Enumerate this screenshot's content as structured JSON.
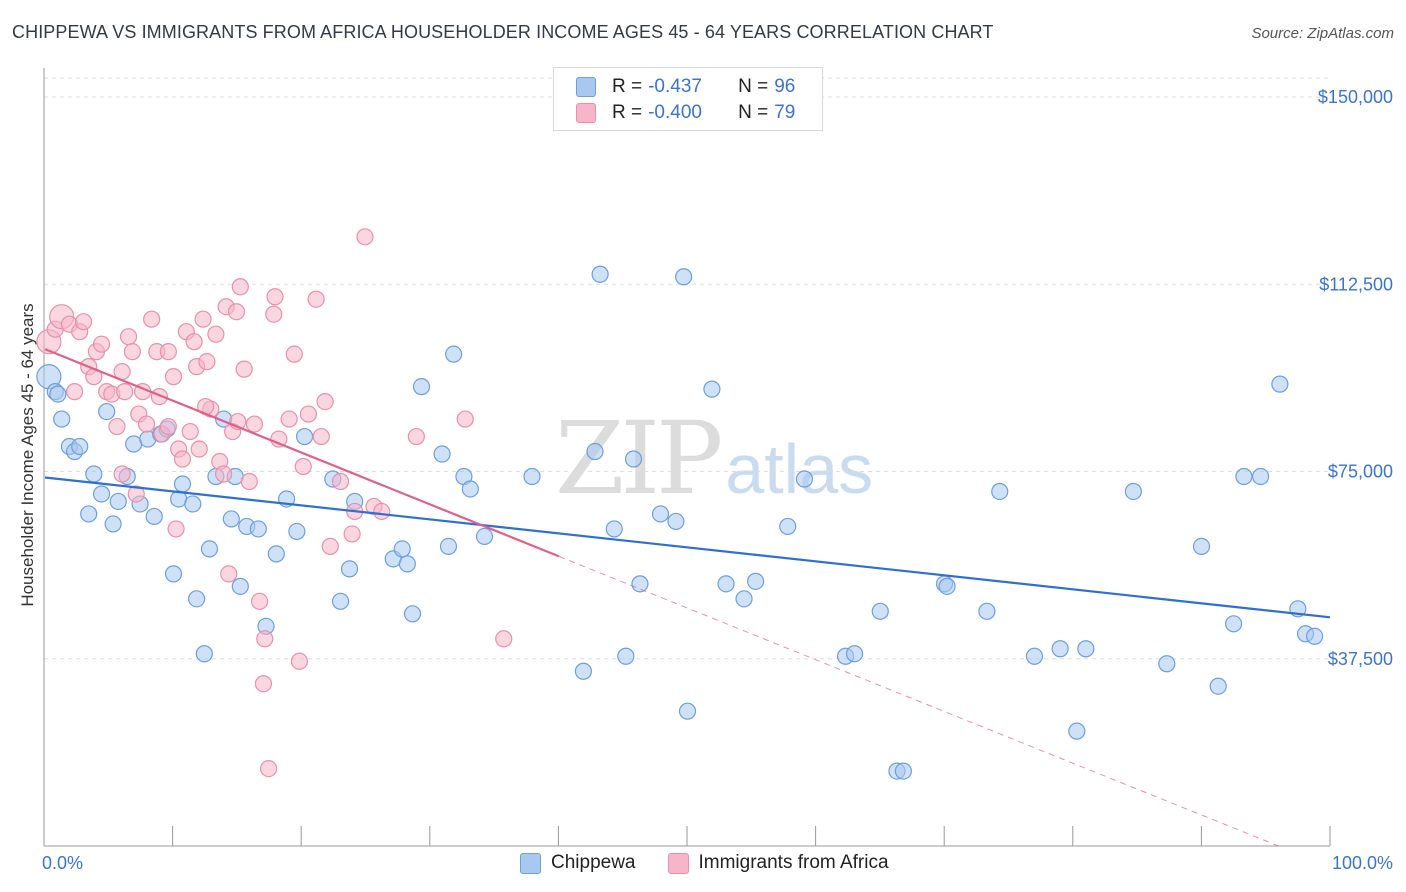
{
  "title": "CHIPPEWA VS IMMIGRANTS FROM AFRICA HOUSEHOLDER INCOME AGES 45 - 64 YEARS CORRELATION CHART",
  "source": "Source: ZipAtlas.com",
  "watermark": {
    "zip": "ZIP",
    "atlas": "atlas"
  },
  "legend": {
    "r_label": "R =",
    "n_label": "N =",
    "rows": [
      {
        "r": "-0.437",
        "n": "96",
        "color": "#a8c8f0"
      },
      {
        "r": "-0.400",
        "n": "79",
        "color": "#f6b5c8"
      }
    ]
  },
  "bottom_legend": [
    "Chippewa",
    "Immigrants from Africa"
  ],
  "colors": {
    "blue_fill": "#a8c8f0",
    "blue_stroke": "#6c9fdc",
    "blue_line": "#2e6fd0",
    "pink_fill": "#f6b5c8",
    "pink_stroke": "#e890aa",
    "pink_line": "#e0608a",
    "grid": "#dddddd",
    "tick_text": "#3a74d0"
  },
  "chart_data": {
    "type": "scatter",
    "title": "CHIPPEWA VS IMMIGRANTS FROM AFRICA HOUSEHOLDER INCOME AGES 45 - 64 YEARS CORRELATION CHART",
    "xlabel": "",
    "ylabel": "Householder Income Ages 45 - 64 years",
    "xlim": [
      0,
      100
    ],
    "ylim": [
      0,
      153000
    ],
    "x_tick_labels": [
      "0.0%",
      "100.0%"
    ],
    "y_ticks": [
      37500,
      75000,
      112500,
      150000
    ],
    "y_tick_labels": [
      "$37,500",
      "$75,000",
      "$112,500",
      "$150,000"
    ],
    "grid": true,
    "series": [
      {
        "name": "Chippewa",
        "r": -0.437,
        "n": 96,
        "trend": {
          "x": [
            0,
            100
          ],
          "y": [
            73800,
            45800
          ]
        },
        "points": [
          [
            0.3,
            94000
          ],
          [
            0.8,
            91000
          ],
          [
            1.3,
            85500
          ],
          [
            1.9,
            80000
          ],
          [
            2.3,
            79000
          ],
          [
            2.7,
            80000
          ],
          [
            3.4,
            66500
          ],
          [
            3.8,
            74500
          ],
          [
            4.4,
            70500
          ],
          [
            4.8,
            87000
          ],
          [
            5.3,
            64500
          ],
          [
            5.7,
            69000
          ],
          [
            6.4,
            74000
          ],
          [
            6.9,
            80500
          ],
          [
            7.4,
            68500
          ],
          [
            8.0,
            81500
          ],
          [
            8.5,
            66000
          ],
          [
            9.0,
            82500
          ],
          [
            9.5,
            83500
          ],
          [
            10.0,
            54500
          ],
          [
            10.4,
            69500
          ],
          [
            10.7,
            72500
          ],
          [
            11.5,
            68500
          ],
          [
            11.8,
            49500
          ],
          [
            12.4,
            38500
          ],
          [
            12.8,
            59500
          ],
          [
            13.3,
            74000
          ],
          [
            13.9,
            85500
          ],
          [
            14.5,
            65500
          ],
          [
            14.8,
            74000
          ],
          [
            15.2,
            52000
          ],
          [
            15.7,
            64000
          ],
          [
            16.6,
            63500
          ],
          [
            17.2,
            44000
          ],
          [
            18.0,
            58500
          ],
          [
            18.8,
            69500
          ],
          [
            19.6,
            63000
          ],
          [
            20.2,
            82000
          ],
          [
            22.4,
            73500
          ],
          [
            23.0,
            49000
          ],
          [
            23.7,
            55500
          ],
          [
            24.1,
            69000
          ],
          [
            27.1,
            57500
          ],
          [
            27.8,
            59500
          ],
          [
            28.2,
            56500
          ],
          [
            28.6,
            46500
          ],
          [
            29.3,
            92000
          ],
          [
            30.9,
            78500
          ],
          [
            31.4,
            60000
          ],
          [
            31.8,
            98500
          ],
          [
            32.6,
            74000
          ],
          [
            33.1,
            71500
          ],
          [
            34.2,
            62000
          ],
          [
            37.9,
            74000
          ],
          [
            41.9,
            35000
          ],
          [
            42.8,
            79000
          ],
          [
            43.2,
            114500
          ],
          [
            44.3,
            63500
          ],
          [
            45.2,
            38000
          ],
          [
            45.8,
            77500
          ],
          [
            46.3,
            52500
          ],
          [
            47.9,
            66500
          ],
          [
            49.1,
            65000
          ],
          [
            49.7,
            114000
          ],
          [
            50.0,
            27000
          ],
          [
            51.9,
            91500
          ],
          [
            53.0,
            52500
          ],
          [
            54.4,
            49500
          ],
          [
            55.3,
            53000
          ],
          [
            57.8,
            64000
          ],
          [
            59.1,
            73500
          ],
          [
            62.3,
            38000
          ],
          [
            63.0,
            38500
          ],
          [
            65.0,
            47000
          ],
          [
            66.3,
            15000
          ],
          [
            66.8,
            15000
          ],
          [
            70.0,
            52500
          ],
          [
            70.2,
            52000
          ],
          [
            73.3,
            47000
          ],
          [
            74.3,
            71000
          ],
          [
            77.0,
            38000
          ],
          [
            79.0,
            39500
          ],
          [
            80.3,
            23000
          ],
          [
            81.0,
            39500
          ],
          [
            84.7,
            71000
          ],
          [
            87.3,
            36500
          ],
          [
            90.0,
            60000
          ],
          [
            91.3,
            32000
          ],
          [
            92.5,
            44500
          ],
          [
            93.3,
            74000
          ],
          [
            94.6,
            74000
          ],
          [
            96.1,
            92500
          ],
          [
            97.5,
            47500
          ],
          [
            98.1,
            42500
          ],
          [
            98.8,
            42000
          ],
          [
            1.0,
            90500
          ]
        ]
      },
      {
        "name": "Immigrants from Africa",
        "r": -0.4,
        "n": 79,
        "trend": {
          "x": [
            0,
            40
          ],
          "y": [
            99500,
            58000
          ]
        },
        "trend_dashed": {
          "x": [
            40,
            96
          ],
          "y": [
            58000,
            0
          ]
        },
        "points": [
          [
            0.3,
            101000
          ],
          [
            0.8,
            103500
          ],
          [
            1.3,
            106000
          ],
          [
            1.9,
            104500
          ],
          [
            2.3,
            91000
          ],
          [
            2.7,
            103000
          ],
          [
            3.4,
            96000
          ],
          [
            3.8,
            94000
          ],
          [
            4.0,
            99000
          ],
          [
            4.4,
            100500
          ],
          [
            4.8,
            91000
          ],
          [
            5.2,
            90500
          ],
          [
            5.6,
            84000
          ],
          [
            6.0,
            74500
          ],
          [
            6.2,
            91000
          ],
          [
            6.5,
            102000
          ],
          [
            6.8,
            99000
          ],
          [
            7.1,
            70500
          ],
          [
            7.3,
            86500
          ],
          [
            7.6,
            91000
          ],
          [
            7.9,
            84500
          ],
          [
            8.3,
            105500
          ],
          [
            8.7,
            99000
          ],
          [
            8.9,
            90000
          ],
          [
            9.1,
            82500
          ],
          [
            9.6,
            99000
          ],
          [
            10.0,
            94000
          ],
          [
            10.2,
            63500
          ],
          [
            10.4,
            79500
          ],
          [
            10.7,
            77500
          ],
          [
            11.0,
            103000
          ],
          [
            11.3,
            83000
          ],
          [
            11.6,
            101000
          ],
          [
            11.8,
            96000
          ],
          [
            12.0,
            79500
          ],
          [
            12.3,
            105500
          ],
          [
            12.6,
            97000
          ],
          [
            12.9,
            87500
          ],
          [
            13.3,
            102500
          ],
          [
            13.6,
            77000
          ],
          [
            13.9,
            74500
          ],
          [
            14.1,
            108000
          ],
          [
            14.3,
            54500
          ],
          [
            14.6,
            83000
          ],
          [
            14.9,
            107000
          ],
          [
            15.2,
            112000
          ],
          [
            15.5,
            95500
          ],
          [
            15.9,
            73000
          ],
          [
            16.3,
            84500
          ],
          [
            16.7,
            49000
          ],
          [
            17.1,
            41500
          ],
          [
            17.4,
            15500
          ],
          [
            17.8,
            106500
          ],
          [
            17.9,
            110000
          ],
          [
            18.2,
            81500
          ],
          [
            19.0,
            85500
          ],
          [
            19.4,
            98500
          ],
          [
            19.8,
            37000
          ],
          [
            20.1,
            76000
          ],
          [
            20.5,
            86500
          ],
          [
            21.1,
            109500
          ],
          [
            21.5,
            82000
          ],
          [
            21.8,
            89000
          ],
          [
            22.2,
            60000
          ],
          [
            23.0,
            73000
          ],
          [
            23.9,
            62500
          ],
          [
            24.1,
            67000
          ],
          [
            24.9,
            122000
          ],
          [
            25.6,
            68000
          ],
          [
            26.2,
            67000
          ],
          [
            28.9,
            82000
          ],
          [
            32.7,
            85500
          ],
          [
            35.7,
            41500
          ],
          [
            9.6,
            84000
          ],
          [
            12.5,
            88000
          ],
          [
            17.0,
            32500
          ],
          [
            3.0,
            105000
          ],
          [
            6.0,
            95000
          ],
          [
            15.0,
            85000
          ]
        ]
      }
    ]
  }
}
